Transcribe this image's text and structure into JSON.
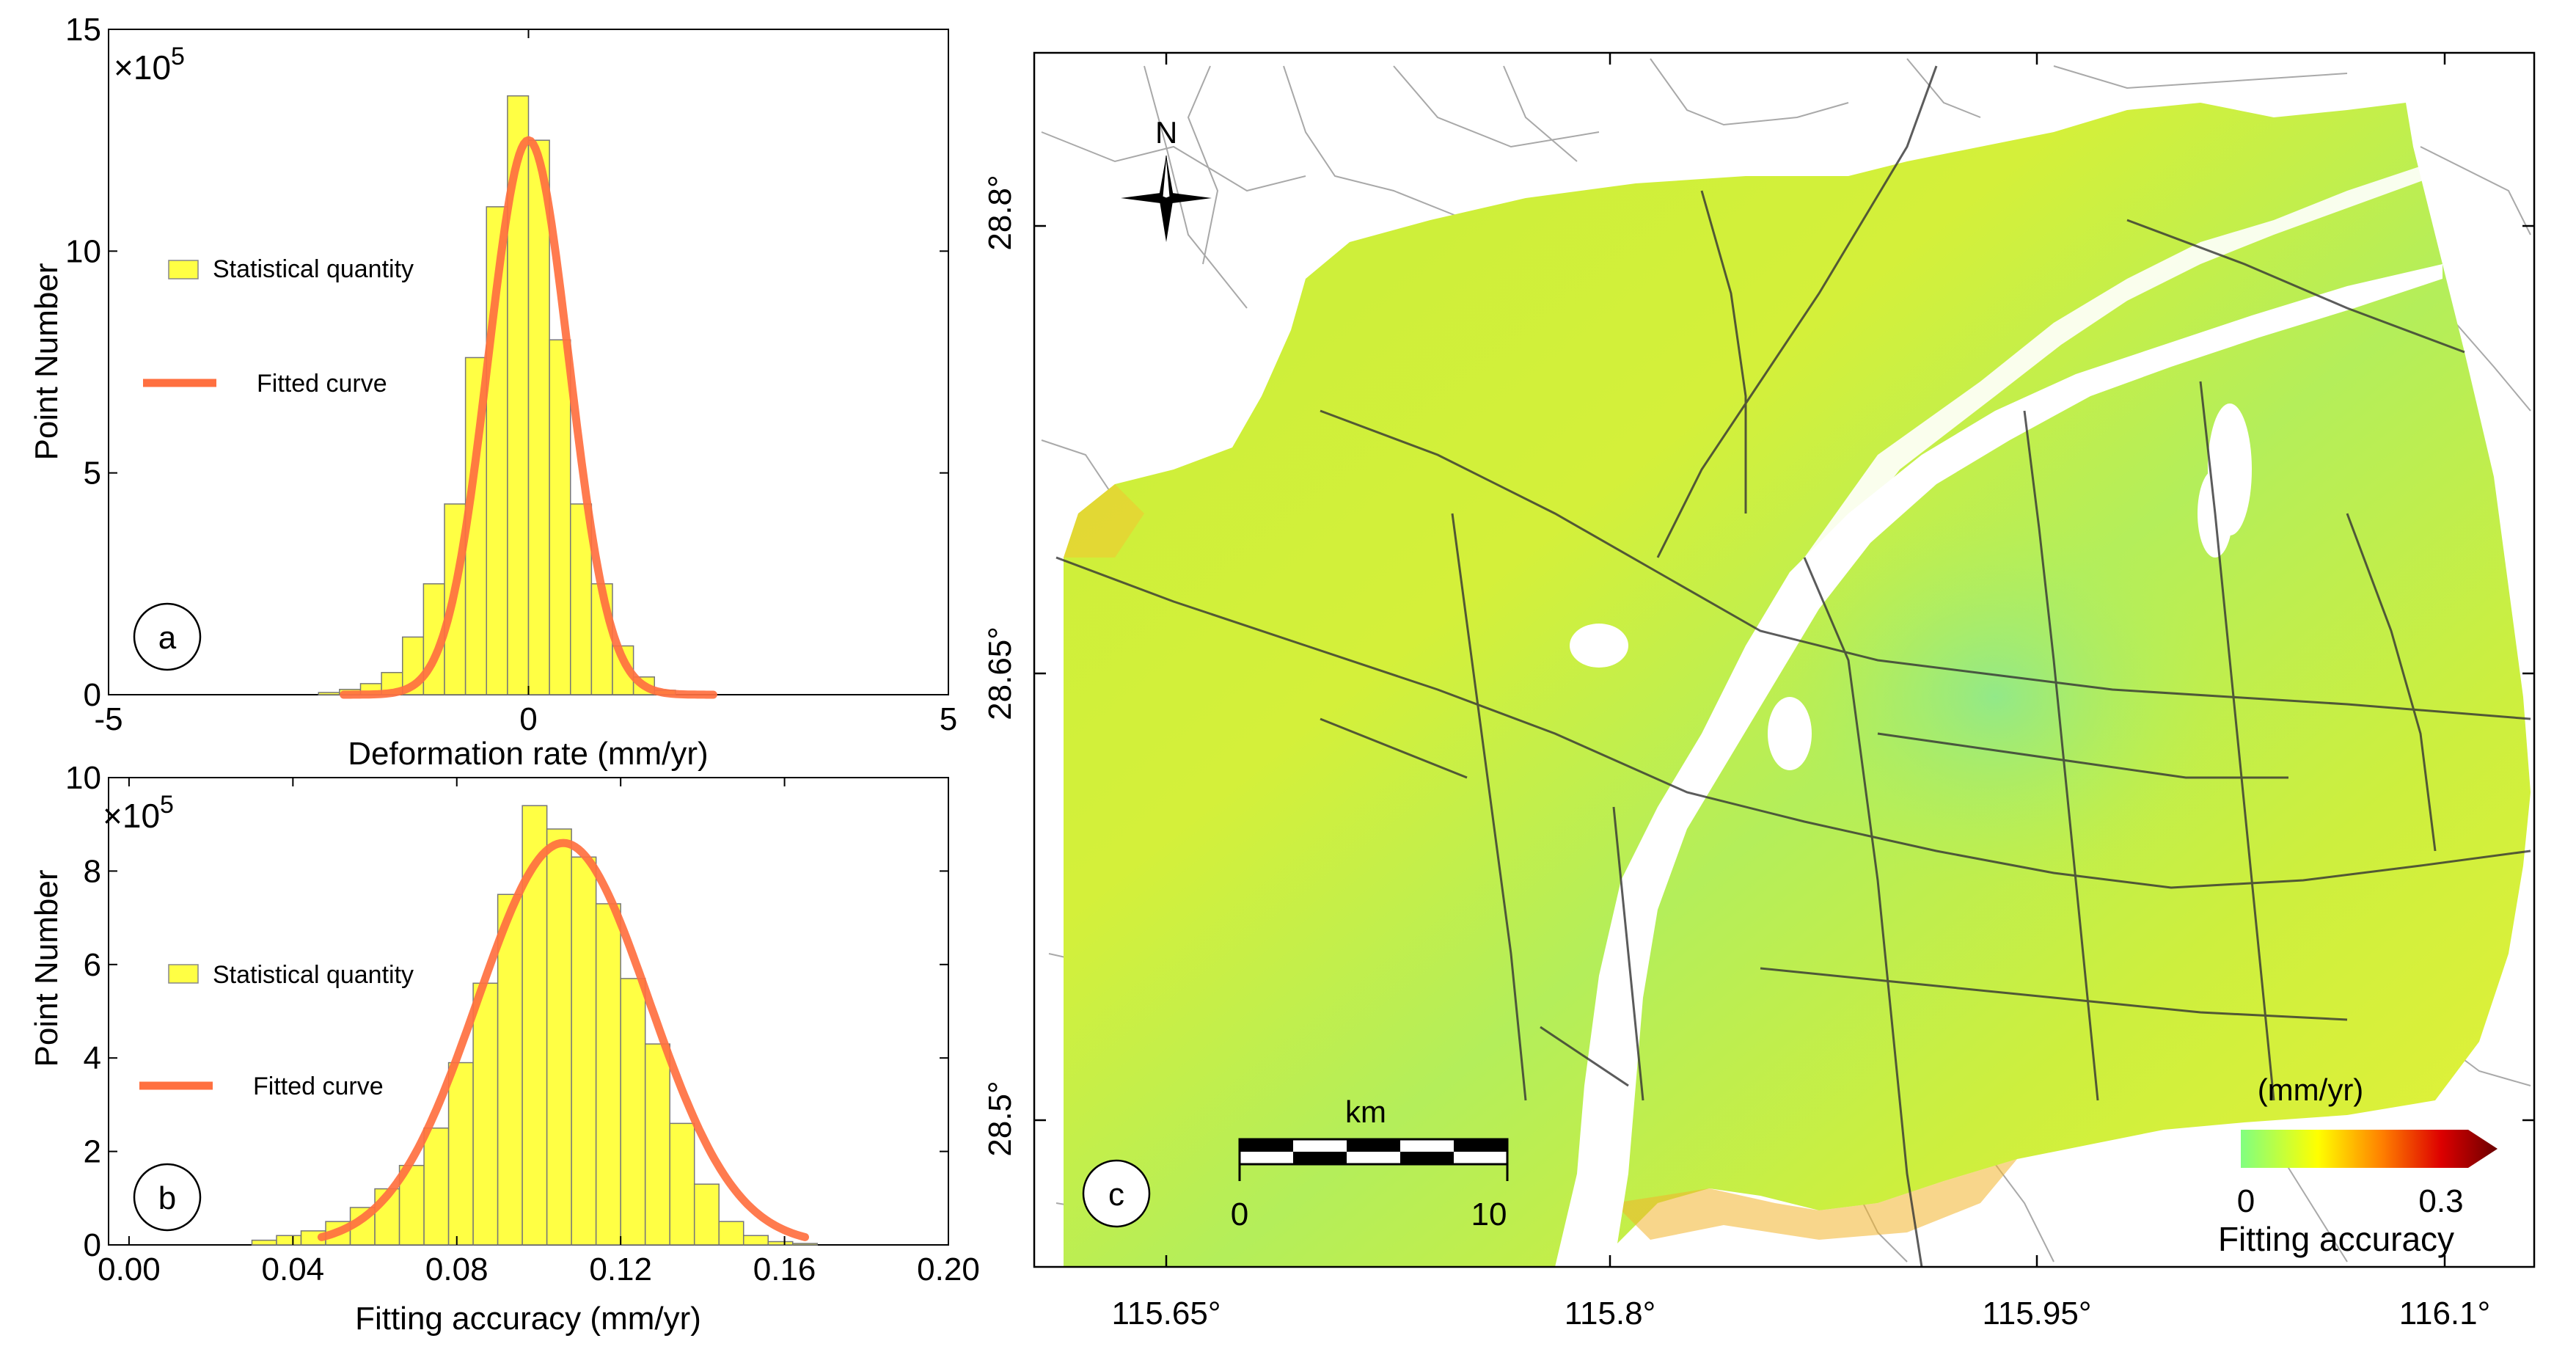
{
  "panel_a": {
    "label": "a",
    "legend_hist": "Statistical quantity",
    "legend_fit": "Fitted curve",
    "exponent_label": "×10",
    "exponent_power": "5",
    "hist_color": "#ffff44",
    "fit_color": "#ff7040"
  },
  "panel_b": {
    "label": "b",
    "legend_hist": "Statistical quantity",
    "legend_fit": "Fitted curve",
    "exponent_label": "×10",
    "exponent_power": "5",
    "hist_color": "#ffff44",
    "fit_color": "#ff7040"
  },
  "panel_c": {
    "label": "c",
    "north_label": "N",
    "scale_unit": "km",
    "scale_ticks": [
      "0",
      "10"
    ],
    "colorbar_unit": "(mm/yr)",
    "colorbar_ticks": [
      "0",
      "0.3"
    ],
    "colorbar_title": "Fitting accuracy",
    "colorbar_colors": [
      "#80ff80",
      "#ffff00",
      "#ff8000",
      "#dd0000",
      "#6a0000"
    ],
    "lat_labels": [
      "28.8°",
      "28.65°",
      "28.5°"
    ],
    "lon_labels": [
      "115.65°",
      "115.8°",
      "115.95°",
      "116.1°"
    ]
  },
  "chart_data": [
    {
      "type": "bar",
      "id": "a",
      "title": "",
      "xlabel": "Deformation rate (mm/yr)",
      "ylabel": "Point Number",
      "xlim": [
        -5,
        5
      ],
      "ylim": [
        0,
        15
      ],
      "x_ticks": [
        "-5",
        "0",
        "5"
      ],
      "y_ticks": [
        "0",
        "5",
        "10",
        "15"
      ],
      "y_scale": "×10^5",
      "bin_width": 0.25,
      "bin_centers": [
        -2.375,
        -2.125,
        -1.875,
        -1.625,
        -1.375,
        -1.125,
        -0.875,
        -0.625,
        -0.375,
        -0.125,
        0.125,
        0.375,
        0.625,
        0.875,
        1.125,
        1.375,
        1.625
      ],
      "values": [
        0.05,
        0.12,
        0.25,
        0.5,
        1.3,
        2.5,
        4.3,
        7.6,
        11.0,
        13.5,
        12.5,
        8.0,
        4.3,
        2.5,
        1.1,
        0.4,
        0.1
      ],
      "fit": {
        "type": "gaussian",
        "amplitude": 12.5,
        "mean": 0.0,
        "sigma": 0.48,
        "range": [
          -2.2,
          2.2
        ]
      },
      "legend": [
        "Statistical quantity",
        "Fitted curve"
      ]
    },
    {
      "type": "bar",
      "id": "b",
      "title": "",
      "xlabel": "Fitting accuracy (mm/yr)",
      "ylabel": "Point Number",
      "xlim": [
        -0.005,
        0.2
      ],
      "ylim": [
        0,
        10
      ],
      "x_ticks": [
        "0.00",
        "0.04",
        "0.08",
        "0.12",
        "0.16",
        "0.20"
      ],
      "y_ticks": [
        "0",
        "2",
        "4",
        "6",
        "8",
        "10"
      ],
      "y_scale": "×10^5",
      "bin_width": 0.006,
      "bin_centers": [
        0.033,
        0.039,
        0.045,
        0.051,
        0.057,
        0.063,
        0.069,
        0.075,
        0.081,
        0.087,
        0.093,
        0.099,
        0.105,
        0.111,
        0.117,
        0.123,
        0.129,
        0.135,
        0.141,
        0.147,
        0.153,
        0.159,
        0.165
      ],
      "values": [
        0.1,
        0.2,
        0.3,
        0.5,
        0.8,
        1.2,
        1.7,
        2.5,
        3.9,
        5.6,
        7.5,
        9.4,
        8.9,
        8.3,
        7.3,
        5.7,
        4.3,
        2.6,
        1.3,
        0.5,
        0.2,
        0.07,
        0.03
      ],
      "fit": {
        "type": "gaussian",
        "amplitude": 8.6,
        "mean": 0.106,
        "sigma": 0.021,
        "range": [
          0.047,
          0.165
        ]
      },
      "legend": [
        "Statistical quantity",
        "Fitted curve"
      ]
    }
  ]
}
